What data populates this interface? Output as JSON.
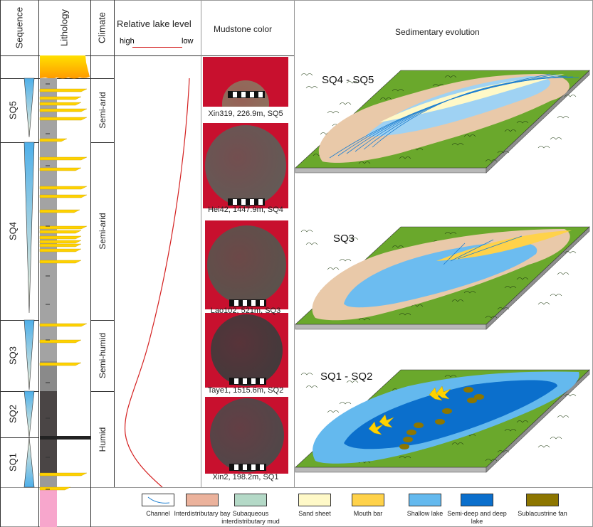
{
  "headers": {
    "sequence": "Sequence",
    "lithology": "Lithology",
    "climate": "Climate",
    "lake_level": "Relative lake level",
    "lake_high": "high",
    "lake_low": "low",
    "mudstone": "Mudstone color",
    "evolution": "Sedimentary evolution"
  },
  "sequences": [
    "SQ5",
    "SQ4",
    "SQ3",
    "SQ2",
    "SQ1"
  ],
  "climate": [
    "Semi-arid",
    "Semi-arid",
    "Semi-humid",
    "Humid"
  ],
  "mudstone_photos": [
    {
      "caption": "Xin319, 226.9m, SQ5",
      "color": "#8a7560"
    },
    {
      "caption": "Hei42, 1447.9m, SQ4",
      "color": "#5e5e58"
    },
    {
      "caption": "Lao102, 521m, SQ3",
      "color": "#55564e"
    },
    {
      "caption": "Taye1, 1515.6m, SQ2",
      "color": "#3c3c3c"
    },
    {
      "caption": "Xin2, 198.2m, SQ1",
      "color": "#4a4a4a"
    }
  ],
  "maps": [
    {
      "title": "SQ4 - SQ5"
    },
    {
      "title": "SQ3"
    },
    {
      "title": "SQ1 - SQ2"
    }
  ],
  "legend": [
    {
      "label": "Channel",
      "icon": "channel-line",
      "color": "#ffffff"
    },
    {
      "label": "Interdistributary bay",
      "color": "#ebb29c"
    },
    {
      "label": "Subaqueous interdistributary mud",
      "color": "#b4d9c7"
    },
    {
      "label": "Sand sheet",
      "color": "#fff9c8"
    },
    {
      "label": "Mouth bar",
      "color": "#ffd24a"
    },
    {
      "label": "Shallow lake",
      "color": "#64b9ee"
    },
    {
      "label": "Semi-deep and deep lake",
      "color": "#0b6fcc"
    },
    {
      "label": "Sublacustrine fan",
      "color": "#8d7600"
    }
  ],
  "colors": {
    "lake_curve": "#d42020",
    "sand": "#ffd200",
    "mudstone_gray": "#9a9a9a",
    "dark_mudstone": "#4a4545",
    "red_bed": "#f7a6cc",
    "grass": "#6aa82c"
  }
}
